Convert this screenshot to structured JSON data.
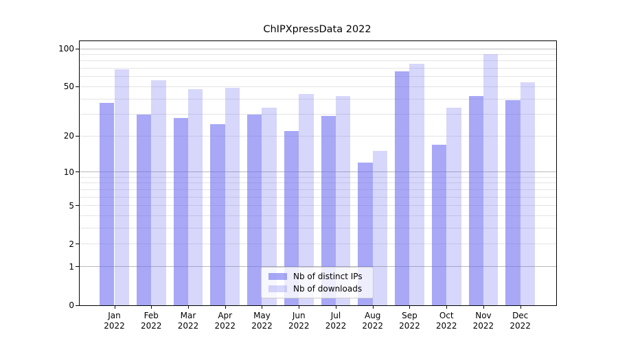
{
  "chart_data": {
    "type": "bar",
    "title": "ChIPXpressData 2022",
    "categories": [
      {
        "month": "Jan",
        "year": "2022"
      },
      {
        "month": "Feb",
        "year": "2022"
      },
      {
        "month": "Mar",
        "year": "2022"
      },
      {
        "month": "Apr",
        "year": "2022"
      },
      {
        "month": "May",
        "year": "2022"
      },
      {
        "month": "Jun",
        "year": "2022"
      },
      {
        "month": "Jul",
        "year": "2022"
      },
      {
        "month": "Aug",
        "year": "2022"
      },
      {
        "month": "Sep",
        "year": "2022"
      },
      {
        "month": "Oct",
        "year": "2022"
      },
      {
        "month": "Nov",
        "year": "2022"
      },
      {
        "month": "Dec",
        "year": "2022"
      }
    ],
    "series": [
      {
        "name": "Nb of distinct IPs",
        "color": "rgba(102,102,240,0.57)",
        "values": [
          37,
          30,
          28,
          25,
          30,
          22,
          29,
          12,
          66,
          17,
          42,
          39
        ]
      },
      {
        "name": "Nb of downloads",
        "color": "rgba(102,102,240,0.26)",
        "values": [
          69,
          56,
          48,
          49,
          34,
          44,
          42,
          15,
          76,
          34,
          90,
          54
        ]
      }
    ],
    "y_axis": {
      "scale": "log1p",
      "max": 100,
      "tick_labels": [
        "0",
        "1",
        "2",
        "5",
        "10",
        "20",
        "50",
        "100"
      ],
      "ticks": [
        0,
        1,
        2,
        5,
        10,
        20,
        50,
        100
      ],
      "major_gridlines": [
        1,
        10,
        100
      ],
      "minor_gridlines": [
        2,
        3,
        4,
        5,
        6,
        7,
        8,
        9,
        20,
        30,
        40,
        50,
        60,
        70,
        80,
        90
      ]
    },
    "legend": {
      "position": "lower center inside"
    },
    "colors": {
      "grid_major": "#b9b9b9",
      "grid_minor": "#e4e4e4",
      "axis": "#000000",
      "text": "#000000",
      "background": "#ffffff"
    }
  }
}
